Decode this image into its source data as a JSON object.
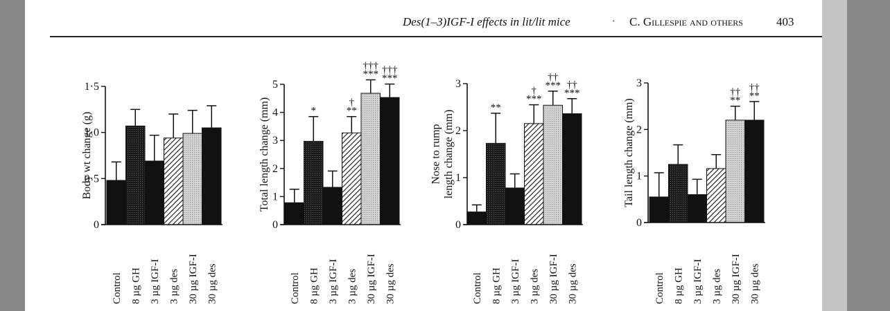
{
  "header": {
    "title": "Des(1–3)IGF-I effects in lit/lit mice",
    "separator": "·",
    "author": "C. Gillespie and others",
    "page_number": "403"
  },
  "chart_data": [
    {
      "type": "bar",
      "ylabel": "Body wt change (g)",
      "ylim": [
        0,
        1.5
      ],
      "yticks": [
        "0",
        "0·5",
        "1·0",
        "1·5"
      ],
      "ytick_values": [
        0,
        0.5,
        1.0,
        1.5
      ],
      "categories": [
        "Control",
        "8 µg GH",
        "3 µg IGF-I",
        "3 µg des",
        "30 µg IGF-I",
        "30 µg des"
      ],
      "values": [
        0.48,
        1.07,
        0.69,
        0.94,
        0.99,
        1.05
      ],
      "errors": [
        0.2,
        0.18,
        0.28,
        0.26,
        0.25,
        0.24
      ],
      "annotations": [
        "",
        "",
        "",
        "",
        "",
        ""
      ],
      "patterns": [
        "solid",
        "dense",
        "solid",
        "hatch",
        "light",
        "solid"
      ]
    },
    {
      "type": "bar",
      "ylabel": "Total length change (mm)",
      "ylim": [
        0,
        5
      ],
      "yticks": [
        "0",
        "1",
        "2",
        "3",
        "4",
        "5"
      ],
      "ytick_values": [
        0,
        1,
        2,
        3,
        4,
        5
      ],
      "categories": [
        "Control",
        "8 µg GH",
        "3 µg IGF-I",
        "3 µg des",
        "30 µg IGF-I",
        "30 µg des"
      ],
      "values": [
        0.78,
        2.97,
        1.33,
        3.27,
        4.68,
        4.53
      ],
      "errors": [
        0.48,
        0.88,
        0.58,
        0.58,
        0.48,
        0.48
      ],
      "annotations": [
        "",
        "*",
        "",
        "†\n**",
        "†††\n***",
        "†††\n***"
      ],
      "patterns": [
        "solid",
        "dense",
        "solid",
        "hatch",
        "light",
        "solid"
      ]
    },
    {
      "type": "bar",
      "ylabel": "Nose to rump length change (mm)",
      "ylim": [
        0,
        3
      ],
      "yticks": [
        "0",
        "1",
        "2",
        "3"
      ],
      "ytick_values": [
        0,
        1,
        2,
        3
      ],
      "categories": [
        "Control",
        "8 µg GH",
        "3 µg IGF-I",
        "3 µg des",
        "30 µg IGF-I",
        "30 µg des"
      ],
      "values": [
        0.27,
        1.73,
        0.78,
        2.15,
        2.54,
        2.36
      ],
      "errors": [
        0.15,
        0.64,
        0.3,
        0.4,
        0.3,
        0.32
      ],
      "annotations": [
        "",
        "**",
        "",
        "†\n***",
        "††\n***",
        "††\n***"
      ],
      "patterns": [
        "solid",
        "dense",
        "solid",
        "hatch",
        "light",
        "solid"
      ]
    },
    {
      "type": "bar",
      "ylabel": "Tail length change (mm)",
      "ylim": [
        0,
        3
      ],
      "yticks": [
        "0",
        "1",
        "2",
        "3"
      ],
      "ytick_values": [
        0,
        1,
        2,
        3
      ],
      "categories": [
        "Control",
        "8 µg GH",
        "3 µg IGF-I",
        "3 µg des",
        "30 µg IGF-I",
        "30 µg des"
      ],
      "values": [
        0.55,
        1.25,
        0.6,
        1.16,
        2.2,
        2.2
      ],
      "errors": [
        0.52,
        0.42,
        0.33,
        0.3,
        0.3,
        0.4
      ],
      "annotations": [
        "",
        "",
        "",
        "",
        "††\n**",
        "††\n**"
      ],
      "patterns": [
        "solid",
        "dense",
        "solid",
        "hatch",
        "light",
        "solid"
      ]
    }
  ]
}
